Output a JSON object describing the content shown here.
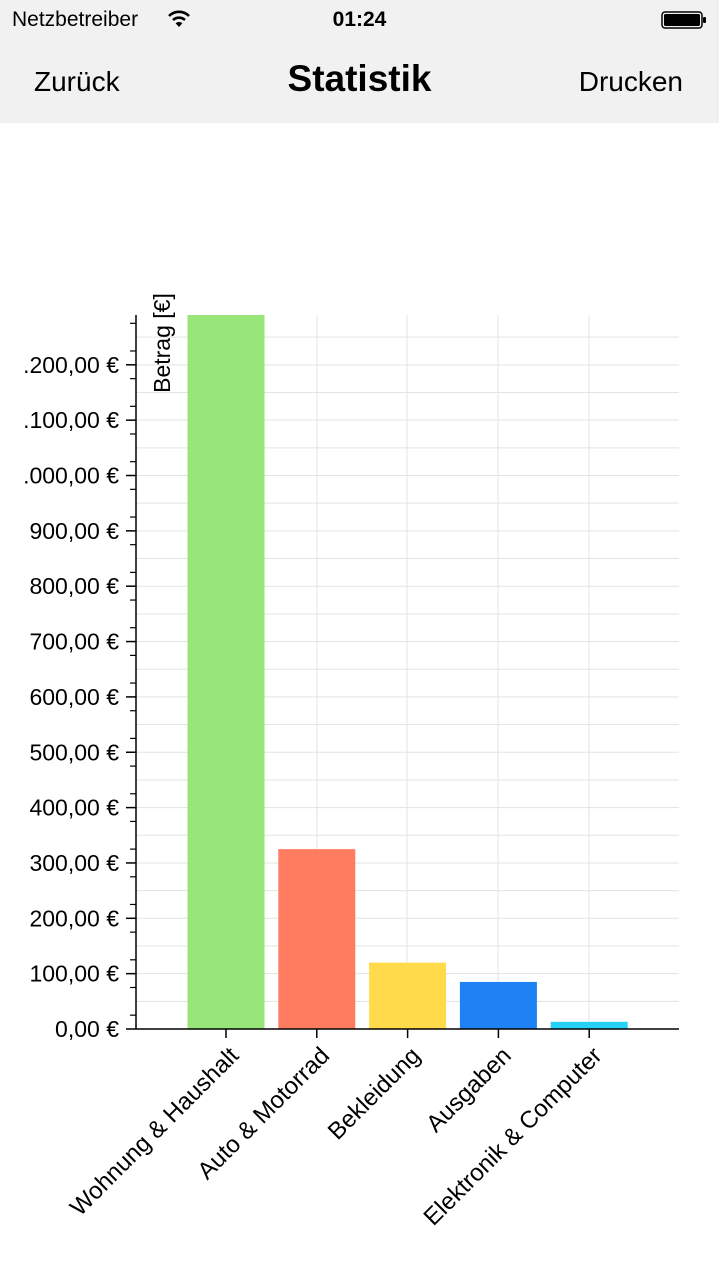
{
  "status_bar": {
    "carrier": "Netzbetreiber",
    "time": "01:24",
    "wifi_icon": "wifi-icon",
    "battery_icon": "battery-icon"
  },
  "nav": {
    "back_label": "Zurück",
    "title": "Statistik",
    "print_label": "Drucken"
  },
  "chart_data": {
    "type": "bar",
    "ylabel": "Betrag [€]",
    "categories": [
      "Wohnung & Haushalt",
      "Auto & Motorrad",
      "Bekleidung",
      "Ausgaben",
      "Elektronik & Computer"
    ],
    "values": [
      1290,
      325,
      120,
      85,
      13
    ],
    "colors": [
      "#98e67a",
      "#ff7c60",
      "#ffda4a",
      "#1e82f5",
      "#25d2f5"
    ],
    "ylim": [
      0,
      1290
    ],
    "yticks": [
      0,
      100,
      200,
      300,
      400,
      500,
      600,
      700,
      800,
      900,
      1000,
      1100,
      1200
    ],
    "ytick_labels": [
      "0,00 €",
      "100,00 €",
      "200,00 €",
      "300,00 €",
      "400,00 €",
      "500,00 €",
      "600,00 €",
      "700,00 €",
      "800,00 €",
      "900,00 €",
      ".000,00 €",
      ".100,00 €",
      ".200,00 €"
    ],
    "grid": true,
    "legend": "none"
  }
}
